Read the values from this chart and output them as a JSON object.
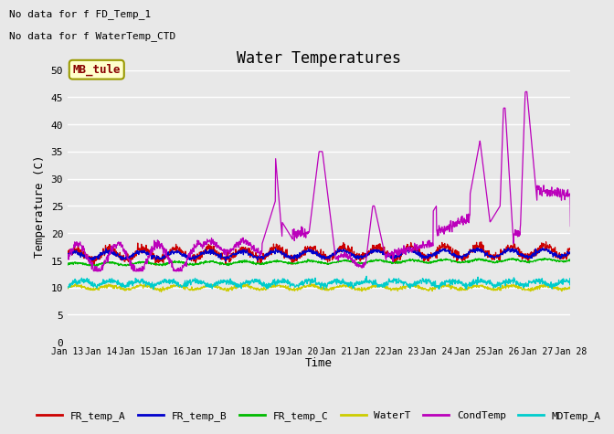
{
  "title": "Water Temperatures",
  "xlabel": "Time",
  "ylabel": "Temperature (C)",
  "ylim": [
    0,
    50
  ],
  "yticks": [
    0,
    5,
    10,
    15,
    20,
    25,
    30,
    35,
    40,
    45,
    50
  ],
  "bg_color": "#e8e8e8",
  "annotations": [
    "No data for f FD_Temp_1",
    "No data for f WaterTemp_CTD"
  ],
  "mb_tule_label": "MB_tule",
  "legend": [
    {
      "label": "FR_temp_A",
      "color": "#cc0000"
    },
    {
      "label": "FR_temp_B",
      "color": "#0000cc"
    },
    {
      "label": "FR_temp_C",
      "color": "#00bb00"
    },
    {
      "label": "WaterT",
      "color": "#cccc00"
    },
    {
      "label": "CondTemp",
      "color": "#bb00bb"
    },
    {
      "label": "MDTemp_A",
      "color": "#00cccc"
    }
  ],
  "xtick_labels": [
    "Jan 13",
    "Jan 14",
    "Jan 15",
    "Jan 16",
    "Jan 17",
    "Jan 18",
    "Jan 19",
    "Jan 20",
    "Jan 21",
    "Jan 22",
    "Jan 23",
    "Jan 24",
    "Jan 25",
    "Jan 26",
    "Jan 27",
    "Jan 28"
  ]
}
